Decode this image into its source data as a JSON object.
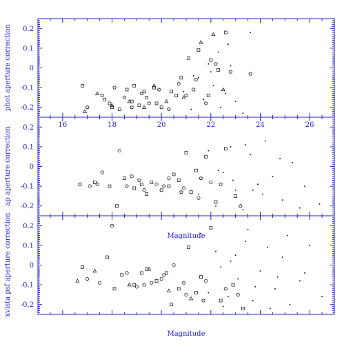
{
  "chart_data": [
    {
      "type": "scatter",
      "title": "",
      "ylabel": "phot aperture correction",
      "xlabel": "",
      "xlim": [
        15,
        27
      ],
      "ylim": [
        -0.25,
        0.25
      ],
      "xticks": [
        16,
        18,
        20,
        22,
        24,
        26
      ],
      "yticks": [
        0.2,
        0.1,
        0,
        -0.1,
        -0.2
      ],
      "show_xtick_labels": true,
      "series": [
        {
          "marker": "square",
          "x": [
            16.8,
            17.7,
            17.9,
            18.3,
            18.6,
            18.9,
            19.1,
            19.4,
            19.7,
            20.0,
            20.4,
            20.8,
            21.1,
            21.5,
            21.9,
            22.3,
            18.0,
            18.8,
            19.3,
            19.8,
            20.6,
            21.3,
            22.0,
            22.6
          ],
          "y": [
            -0.09,
            -0.16,
            -0.18,
            -0.21,
            -0.11,
            -0.09,
            -0.19,
            -0.15,
            -0.1,
            -0.2,
            -0.12,
            -0.05,
            0.05,
            0.09,
            -0.14,
            -0.01,
            -0.2,
            -0.17,
            -0.12,
            -0.18,
            -0.14,
            -0.11,
            0.04,
            0.18
          ]
        },
        {
          "marker": "pentagon",
          "x": [
            17.0,
            17.6,
            18.1,
            18.5,
            18.8,
            19.2,
            19.5,
            19.9,
            20.3,
            20.7,
            21.0,
            21.4,
            21.8,
            22.2,
            22.8,
            23.6
          ],
          "y": [
            -0.2,
            -0.14,
            -0.1,
            -0.15,
            -0.2,
            -0.13,
            -0.18,
            -0.11,
            -0.21,
            -0.08,
            -0.14,
            -0.06,
            -0.18,
            0.02,
            -0.02,
            -0.03
          ]
        },
        {
          "marker": "triangle",
          "x": [
            16.9,
            17.4,
            18.0,
            18.7,
            19.3,
            19.7,
            20.2,
            20.9,
            21.6,
            22.1,
            22.5
          ],
          "y": [
            -0.22,
            -0.13,
            -0.19,
            -0.17,
            -0.2,
            -0.09,
            -0.17,
            -0.15,
            0.13,
            0.17,
            -0.11
          ]
        },
        {
          "marker": "dot",
          "x": [
            20.9,
            21.2,
            21.5,
            21.7,
            21.9,
            22.1,
            22.3,
            22.4,
            22.6,
            22.8,
            23.0,
            23.3,
            23.6,
            22.0,
            21.3,
            22.7
          ],
          "y": [
            -0.12,
            -0.21,
            -0.05,
            -0.16,
            0.02,
            -0.09,
            0.08,
            -0.2,
            -0.13,
            0.01,
            -0.17,
            -0.23,
            0.18,
            -0.02,
            -0.04,
            0.12
          ]
        }
      ]
    },
    {
      "type": "scatter",
      "title": "",
      "ylabel": "ap aperture correction",
      "xlabel": "Magnitude",
      "xlim": [
        15,
        27
      ],
      "ylim": [
        -0.25,
        0.25
      ],
      "xticks": [
        16,
        18,
        20,
        22,
        24,
        26
      ],
      "yticks": [
        0.2,
        0.1,
        0,
        -0.1,
        -0.2
      ],
      "show_xtick_labels": false,
      "series": [
        {
          "marker": "square",
          "x": [
            16.7,
            17.3,
            17.9,
            18.5,
            18.9,
            19.2,
            19.6,
            20.0,
            20.3,
            20.7,
            21.0,
            21.4,
            21.8,
            22.2,
            22.6,
            23.0,
            18.2,
            19.4,
            20.5,
            21.2
          ],
          "y": [
            -0.09,
            -0.08,
            -0.1,
            -0.06,
            -0.11,
            -0.09,
            -0.08,
            -0.12,
            -0.1,
            -0.07,
            0.07,
            -0.02,
            0.05,
            -0.18,
            0.09,
            -0.15,
            -0.2,
            -0.14,
            -0.04,
            -0.13
          ]
        },
        {
          "marker": "circle",
          "x": [
            17.1,
            17.6,
            18.3,
            18.8,
            19.3,
            19.8,
            20.3,
            20.9,
            21.5,
            22.0
          ],
          "y": [
            -0.1,
            -0.03,
            0.08,
            -0.05,
            -0.12,
            -0.09,
            -0.06,
            -0.11,
            -0.16,
            -0.08
          ]
        },
        {
          "marker": "pentagon",
          "x": [
            17.4,
            18.6,
            19.1,
            20.1,
            20.8,
            21.6,
            22.4,
            23.2
          ],
          "y": [
            -0.09,
            -0.1,
            -0.07,
            -0.1,
            -0.13,
            -0.06,
            -0.09,
            -0.2
          ]
        },
        {
          "marker": "dot",
          "x": [
            21.5,
            21.9,
            22.2,
            22.5,
            22.8,
            23.0,
            23.3,
            23.6,
            23.9,
            24.2,
            24.5,
            24.9,
            25.3,
            25.8,
            26.4,
            22.9,
            23.4,
            24.1,
            24.8,
            25.6,
            22.3,
            23.7
          ],
          "y": [
            -0.14,
            0.08,
            -0.2,
            -0.03,
            0.1,
            -0.12,
            -0.22,
            0.06,
            -0.09,
            0.13,
            -0.05,
            -0.17,
            0.02,
            -0.1,
            -0.19,
            -0.07,
            0.11,
            -0.14,
            0.04,
            -0.21,
            -0.02,
            -0.12
          ]
        }
      ]
    },
    {
      "type": "scatter",
      "title": "",
      "ylabel": "xvista psf aperture correction",
      "xlabel": "Magnitude",
      "xlim": [
        15,
        27
      ],
      "ylim": [
        -0.25,
        0.25
      ],
      "xticks": [
        16,
        18,
        20,
        22,
        24,
        26
      ],
      "yticks": [
        0.2,
        0.1,
        0,
        -0.1,
        -0.2
      ],
      "show_xtick_labels": false,
      "series": [
        {
          "marker": "square",
          "x": [
            16.8,
            17.8,
            18.4,
            18.9,
            19.4,
            19.8,
            20.2,
            20.7,
            21.1,
            21.6,
            22.0,
            22.4,
            22.9,
            23.3,
            18.1,
            19.2,
            20.4,
            21.4
          ],
          "y": [
            -0.01,
            0.04,
            -0.05,
            -0.1,
            -0.02,
            -0.08,
            -0.04,
            -0.12,
            0.09,
            -0.06,
            0.19,
            -0.18,
            -0.1,
            -0.22,
            -0.12,
            -0.04,
            -0.2,
            -0.14
          ]
        },
        {
          "marker": "circle",
          "x": [
            17.0,
            17.5,
            18.0,
            18.6,
            19.0,
            19.6,
            20.0,
            20.5,
            21.0,
            21.8
          ],
          "y": [
            -0.07,
            -0.09,
            0.2,
            -0.04,
            -0.11,
            -0.09,
            -0.07,
            0.0,
            -0.15,
            -0.08
          ]
        },
        {
          "marker": "triangle",
          "x": [
            16.6,
            17.3,
            18.7,
            19.5,
            20.3,
            21.2
          ],
          "y": [
            -0.08,
            -0.03,
            -0.1,
            -0.02,
            -0.13,
            -0.17
          ]
        },
        {
          "marker": "pentagon",
          "x": [
            19.3,
            20.1,
            20.9,
            21.7,
            22.6,
            23.1
          ],
          "y": [
            -0.1,
            -0.05,
            -0.09,
            -0.18,
            -0.12,
            -0.15
          ]
        },
        {
          "marker": "dot",
          "x": [
            21.6,
            21.9,
            22.2,
            22.5,
            22.8,
            23.1,
            23.4,
            23.7,
            24.0,
            24.3,
            24.6,
            24.9,
            25.2,
            25.6,
            26.0,
            26.5,
            22.4,
            23.0,
            23.8,
            24.4,
            25.1,
            25.8,
            22.7,
            23.5,
            24.7
          ],
          "y": [
            0.16,
            -0.14,
            0.07,
            -0.21,
            0.02,
            -0.07,
            0.12,
            -0.18,
            -0.03,
            0.09,
            -0.12,
            0.04,
            -0.2,
            -0.08,
            0.1,
            -0.16,
            -0.01,
            0.05,
            -0.11,
            -0.22,
            0.15,
            -0.04,
            -0.16,
            0.18,
            -0.06
          ]
        }
      ]
    }
  ]
}
